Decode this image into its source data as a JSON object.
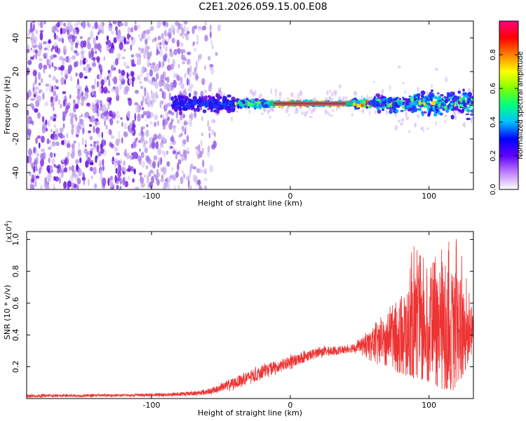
{
  "title": "C2E1.2026.059.15.00.E08",
  "colors": {
    "signal": "#e8362f",
    "trace": "#ee3333",
    "spec_low": "#c4a8ee",
    "spec_mid": "#7a2ee0"
  },
  "chart_data": [
    {
      "type": "heatmap",
      "xlabel": "Height of straight line (km)",
      "ylabel": "Frequency (Hz)",
      "xlim": [
        -190,
        132
      ],
      "ylim": [
        -50,
        50
      ],
      "xticks": [
        -100,
        0,
        100
      ],
      "yticks": [
        -40,
        -20,
        0,
        20,
        40
      ],
      "grid": false,
      "description_values": {
        "noise_region_x": [
          -190,
          -55
        ],
        "transition_x": [
          -80,
          -40
        ],
        "signal_center_hz": 1,
        "strong_band_x": [
          -15,
          45
        ],
        "scattered_band_x": [
          60,
          132
        ]
      },
      "colorbar": {
        "label": "Normalized spectral amplitude",
        "range": [
          0.0,
          1.0
        ],
        "ticks": [
          0.0,
          0.2,
          0.4,
          0.6,
          0.8
        ],
        "tick_labels": [
          "0.0",
          "0.2",
          "0.4",
          "0.6",
          "0.8"
        ],
        "colors": [
          "#ffffff",
          "#c080ff",
          "#6000ff",
          "#0000ff",
          "#00c0ff",
          "#00ff80",
          "#80ff00",
          "#ffff00",
          "#ff8000",
          "#ff0000",
          "#ff0080"
        ]
      }
    },
    {
      "type": "line",
      "xlabel": "Height of straight line (km)",
      "ylabel": "SNR (10 * v/v)",
      "exponent_label": "(x10",
      "exponent_power": "4",
      "xlim": [
        -190,
        132
      ],
      "ylim": [
        0,
        1.05
      ],
      "xticks": [
        -100,
        0,
        100
      ],
      "yticks": [
        0.2,
        0.4,
        0.6,
        0.8,
        1.0
      ],
      "ytick_labels": [
        "0.2",
        "0.4",
        "0.6",
        "0.8",
        "1.0"
      ],
      "series": [
        {
          "name": "SNR",
          "x": [
            -190,
            -120,
            -80,
            -60,
            -40,
            -20,
            0,
            20,
            40,
            50,
            60,
            70,
            80,
            90,
            100,
            110,
            120,
            132
          ],
          "envelope_low": [
            0.005,
            0.01,
            0.01,
            0.02,
            0.05,
            0.12,
            0.18,
            0.25,
            0.28,
            0.28,
            0.22,
            0.2,
            0.15,
            0.12,
            0.1,
            0.05,
            0.05,
            0.3
          ],
          "envelope_high": [
            0.03,
            0.03,
            0.04,
            0.06,
            0.14,
            0.22,
            0.28,
            0.33,
            0.34,
            0.38,
            0.48,
            0.55,
            0.7,
            1.0,
            0.85,
            0.95,
            1.05,
            0.6
          ],
          "mean": [
            0.015,
            0.02,
            0.025,
            0.04,
            0.1,
            0.17,
            0.23,
            0.29,
            0.31,
            0.33,
            0.35,
            0.37,
            0.42,
            0.44,
            0.45,
            0.45,
            0.45,
            0.45
          ]
        }
      ]
    }
  ]
}
